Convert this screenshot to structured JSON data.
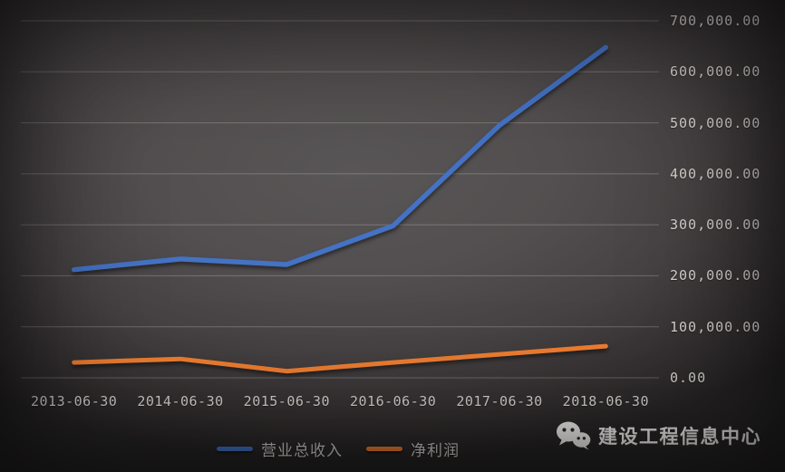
{
  "chart_data": {
    "type": "line",
    "categories": [
      "2013-06-30",
      "2014-06-30",
      "2015-06-30",
      "2016-06-30",
      "2017-06-30",
      "2018-06-30"
    ],
    "series": [
      {
        "name": "营业总收入",
        "color": "#4472c4",
        "values": [
          212000,
          233000,
          222000,
          298000,
          495000,
          648000
        ]
      },
      {
        "name": "净利润",
        "color": "#ed7d31",
        "values": [
          30000,
          37000,
          13000,
          30000,
          46000,
          62000
        ]
      }
    ],
    "title": "",
    "xlabel": "",
    "ylabel": "",
    "ylim": [
      0,
      700000
    ],
    "ytick_step": 100000,
    "ytick_labels": [
      "0.00",
      "100,000.00",
      "200,000.00",
      "300,000.00",
      "400,000.00",
      "500,000.00",
      "600,000.00",
      "700,000.00"
    ],
    "yaxis_side": "right",
    "grid": true,
    "legend_position": "bottom"
  },
  "legend": {
    "revenue_label": "营业总收入",
    "profit_label": "净利润"
  },
  "watermark": {
    "text": "建设工程信息中心",
    "icon": "wechat-icon"
  },
  "colors": {
    "revenue_line": "#4472c4",
    "profit_line": "#ed7d31",
    "tick_text": "#d8d5d1",
    "watermark_text": "#f1efed"
  }
}
